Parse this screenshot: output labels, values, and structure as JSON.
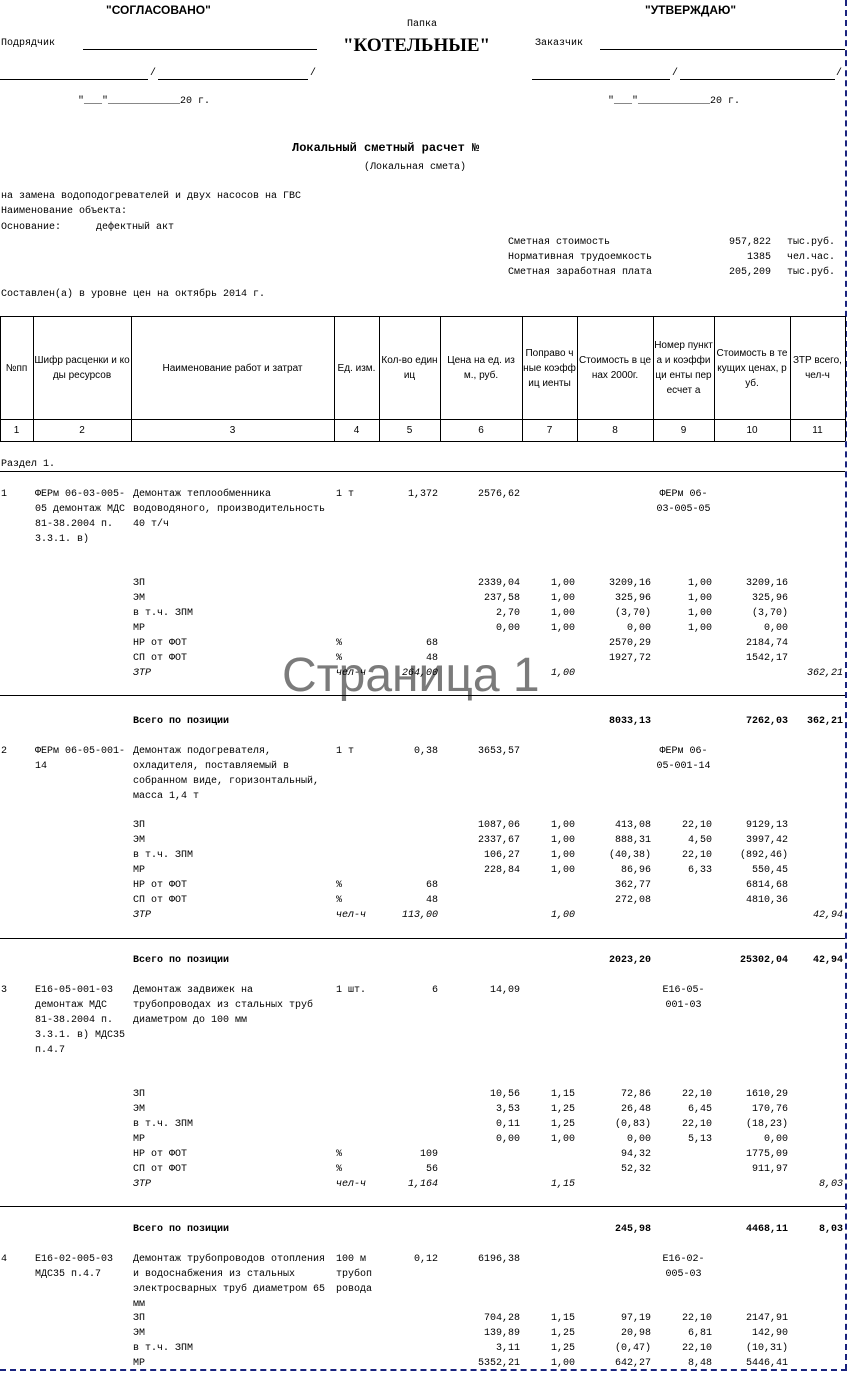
{
  "header": {
    "left_title": "\"СОГЛАСОВАНО\"",
    "contractor_label": "Подрядчик",
    "folder_caption": "Папка",
    "folder_name": "\"КОТЕЛЬНЫЕ\"",
    "right_title": "\"УТВЕРЖДАЮ\"",
    "customer_label": "Заказчик",
    "sign_separator": "/",
    "date_template": "\"___\"____________20 г."
  },
  "title": "Локальный сметный расчет №",
  "subtitle": "(Локальная смета)",
  "info": {
    "work": "на  замена водоподогревателей и двух насосов на ГВС",
    "object_label": "Наименование объекта:",
    "basis_label": "Основание:",
    "basis": "дефектный акт"
  },
  "summary": [
    [
      "Сметная стоимость",
      "957,822",
      "тыс.руб."
    ],
    [
      "Нормативная трудоемкость",
      "1385",
      "чел.час."
    ],
    [
      "Сметная заработная плата",
      "205,209",
      "тыс.руб."
    ]
  ],
  "price_level": "Составлен(а) в уровне цен на октябрь 2014 г.",
  "table": {
    "headers": [
      "№пп",
      "Шифр расценки и коды ресурсов",
      "Наименование работ и затрат",
      "Ед. изм.",
      "Кол-во единиц",
      "Цена на ед. изм., руб.",
      "Поправо чные коэффиц иенты",
      "Стоимость в ценах 2000г.",
      "Номер пункта и коэффици енты пересчет а",
      "Стоимость в текущих ценах, руб.",
      "ЗТР всего, чел-ч"
    ],
    "column_numbers": [
      "1",
      "2",
      "3",
      "4",
      "5",
      "6",
      "7",
      "8",
      "9",
      "10",
      "11"
    ],
    "section": "Раздел 1.",
    "items": [
      {
        "no": "1",
        "code": "ФЕРм 06-03-005-05 демонтаж МДС 81-38.2004 п. 3.3.1. в)",
        "name": "Демонтаж теплообменника водоводяного, производительность 40 т/ч",
        "unit": "1 т",
        "qty": "1,372",
        "price": "2576,62",
        "ref": "ФЕРм 06-03-005-05",
        "details": [
          [
            "ЗП",
            null,
            null,
            "2339,04",
            "1,00",
            "3209,16",
            "1,00",
            "3209,16",
            null
          ],
          [
            "ЭМ",
            null,
            null,
            "237,58",
            "1,00",
            "325,96",
            "1,00",
            "325,96",
            null
          ],
          [
            "в т.ч. ЗПМ",
            null,
            null,
            "2,70",
            "1,00",
            "(3,70)",
            "1,00",
            "(3,70)",
            null
          ],
          [
            "МР",
            null,
            null,
            "0,00",
            "1,00",
            "0,00",
            "1,00",
            "0,00",
            null
          ],
          [
            "НР от ФОТ",
            "%",
            "68",
            null,
            null,
            "2570,29",
            null,
            "2184,74",
            null
          ],
          [
            "СП от ФОТ",
            "%",
            "48",
            null,
            null,
            "1927,72",
            null,
            "1542,17",
            null
          ],
          [
            "ЗТР",
            "чел-ч",
            "264,00",
            null,
            "1,00",
            null,
            null,
            null,
            "362,21"
          ]
        ],
        "total": {
          "label": "Всего по позиции",
          "cost2000": "8033,13",
          "current": "7262,03",
          "ztr": "362,21"
        }
      },
      {
        "no": "2",
        "code": "ФЕРм 06-05-001-14",
        "name": "Демонтаж подогревателя, охладителя, поставляемый в собранном виде, горизонтальный, масса 1,4 т",
        "unit": "1 т",
        "qty": "0,38",
        "price": "3653,57",
        "ref": "ФЕРм 06-05-001-14",
        "details": [
          [
            "ЗП",
            null,
            null,
            "1087,06",
            "1,00",
            "413,08",
            "22,10",
            "9129,13",
            null
          ],
          [
            "ЭМ",
            null,
            null,
            "2337,67",
            "1,00",
            "888,31",
            "4,50",
            "3997,42",
            null
          ],
          [
            "в т.ч. ЗПМ",
            null,
            null,
            "106,27",
            "1,00",
            "(40,38)",
            "22,10",
            "(892,46)",
            null
          ],
          [
            "МР",
            null,
            null,
            "228,84",
            "1,00",
            "86,96",
            "6,33",
            "550,45",
            null
          ],
          [
            "НР от ФОТ",
            "%",
            "68",
            null,
            null,
            "362,77",
            null,
            "6814,68",
            null
          ],
          [
            "СП от ФОТ",
            "%",
            "48",
            null,
            null,
            "272,08",
            null,
            "4810,36",
            null
          ],
          [
            "ЗТР",
            "чел-ч",
            "113,00",
            null,
            "1,00",
            null,
            null,
            null,
            "42,94"
          ]
        ],
        "total": {
          "label": "Всего по позиции",
          "cost2000": "2023,20",
          "current": "25302,04",
          "ztr": "42,94"
        }
      },
      {
        "no": "3",
        "code": "Е16-05-001-03 демонтаж МДС 81-38.2004 п. 3.3.1. в) МДС35 п.4.7",
        "name": "Демонтаж задвижек на трубопроводах из стальных труб диаметром до 100 мм",
        "unit": "1 шт.",
        "qty": "6",
        "price": "14,09",
        "ref": "Е16-05-001-03",
        "details": [
          [
            "ЗП",
            null,
            null,
            "10,56",
            "1,15",
            "72,86",
            "22,10",
            "1610,29",
            null
          ],
          [
            "ЭМ",
            null,
            null,
            "3,53",
            "1,25",
            "26,48",
            "6,45",
            "170,76",
            null
          ],
          [
            "в т.ч. ЗПМ",
            null,
            null,
            "0,11",
            "1,25",
            "(0,83)",
            "22,10",
            "(18,23)",
            null
          ],
          [
            "МР",
            null,
            null,
            "0,00",
            "1,00",
            "0,00",
            "5,13",
            "0,00",
            null
          ],
          [
            "НР от ФОТ",
            "%",
            "109",
            null,
            null,
            "94,32",
            null,
            "1775,09",
            null
          ],
          [
            "СП от ФОТ",
            "%",
            "56",
            null,
            null,
            "52,32",
            null,
            "911,97",
            null
          ],
          [
            "ЗТР",
            "чел-ч",
            "1,164",
            null,
            "1,15",
            null,
            null,
            null,
            "8,03"
          ]
        ],
        "total": {
          "label": "Всего по позиции",
          "cost2000": "245,98",
          "current": "4468,11",
          "ztr": "8,03"
        }
      },
      {
        "no": "4",
        "code": "Е16-02-005-03 МДС35 п.4.7",
        "name": "Демонтаж трубопроводов отопления и водоснабжения из стальных электросварных труб диаметром 65 мм",
        "unit": "100 м трубопровода",
        "qty": "0,12",
        "price": "6196,38",
        "ref": "Е16-02-005-03",
        "details": [
          [
            "ЗП",
            null,
            null,
            "704,28",
            "1,15",
            "97,19",
            "22,10",
            "2147,91",
            null
          ],
          [
            "ЭМ",
            null,
            null,
            "139,89",
            "1,25",
            "20,98",
            "6,81",
            "142,90",
            null
          ],
          [
            "в т.ч. ЗПМ",
            null,
            null,
            "3,11",
            "1,25",
            "(0,47)",
            "22,10",
            "(10,31)",
            null
          ],
          [
            "МР",
            null,
            null,
            "5352,21",
            "1,00",
            "642,27",
            "8,48",
            "5446,41",
            null
          ]
        ]
      }
    ]
  },
  "watermark": "Страница 1"
}
